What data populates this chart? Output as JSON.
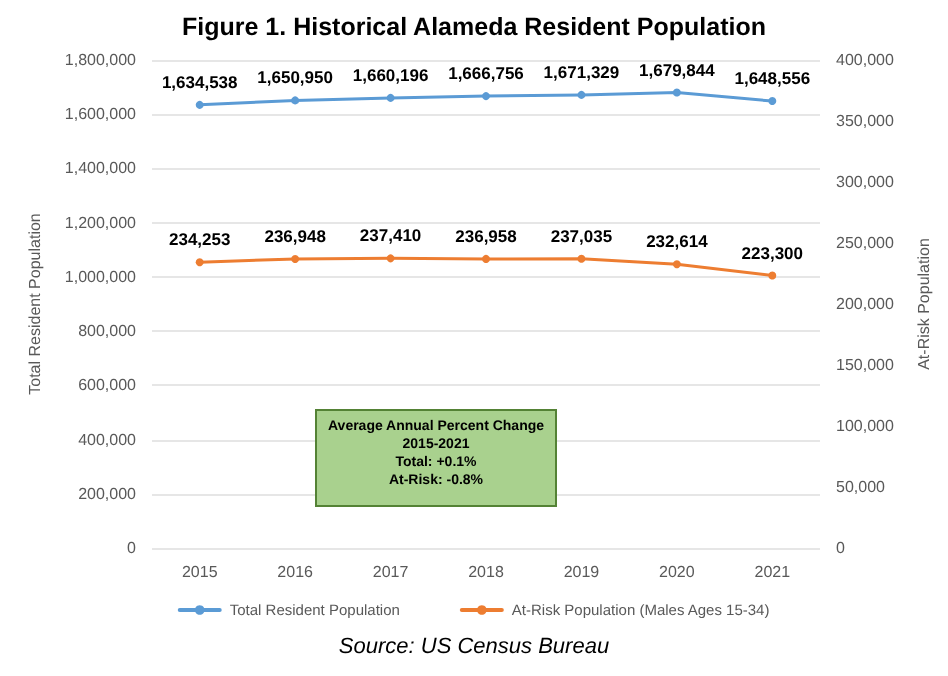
{
  "chart_data": {
    "type": "line",
    "title": "Figure 1. Historical Alameda Resident Population",
    "ylabel": "Total Resident Population",
    "y2label": "At-Risk Population",
    "categories": [
      "2015",
      "2016",
      "2017",
      "2018",
      "2019",
      "2020",
      "2021"
    ],
    "series": [
      {
        "name": "Total Resident Population",
        "color": "#5b9bd5",
        "values": [
          1634538,
          1650950,
          1660196,
          1666756,
          1671329,
          1679844,
          1648556
        ],
        "value_labels": [
          "1,634,538",
          "1,650,950",
          "1,660,196",
          "1,666,756",
          "1,671,329",
          "1,679,844",
          "1,648,556"
        ]
      },
      {
        "name": "At-Risk Population (Males Ages 15-34)",
        "color": "#ed7d31",
        "axis": "y2",
        "values": [
          234253,
          236948,
          237410,
          236958,
          237035,
          232614,
          223300
        ],
        "value_labels": [
          "234,253",
          "236,948",
          "237,410",
          "236,958",
          "237,035",
          "232,614",
          "223,300"
        ]
      }
    ],
    "ylim": [
      0,
      1800000
    ],
    "yticks": [
      0,
      {
        "value": 200000,
        "label": "200,000"
      },
      {
        "value": 400000,
        "label": "400,000"
      },
      {
        "value": 600000,
        "label": "600,000"
      },
      {
        "value": 800000,
        "label": "800,000"
      },
      {
        "value": 1000000,
        "label": "1,000,000"
      },
      {
        "value": 1200000,
        "label": "1,200,000"
      },
      {
        "value": 1400000,
        "label": "1,400,000"
      },
      {
        "value": 1600000,
        "label": "1,600,000"
      },
      {
        "value": 1800000,
        "label": "1,800,000"
      }
    ],
    "y2lim": [
      0,
      400000
    ],
    "y2ticks": [
      0,
      {
        "value": 50000,
        "label": "50,000"
      },
      {
        "value": 100000,
        "label": "100,000"
      },
      {
        "value": 150000,
        "label": "150,000"
      },
      {
        "value": 200000,
        "label": "200,000"
      },
      {
        "value": 250000,
        "label": "250,000"
      },
      {
        "value": 300000,
        "label": "300,000"
      },
      {
        "value": 350000,
        "label": "350,000"
      },
      {
        "value": 400000,
        "label": "400,000"
      }
    ],
    "grid": "y",
    "legend": "bottom",
    "marker": "circle",
    "line_style": "solid",
    "annotations": [
      "Average Annual Percent Change",
      "2015-2021",
      "Total: +0.1%",
      "At-Risk: -0.8%",
      "Source: US Census Bureau"
    ]
  }
}
